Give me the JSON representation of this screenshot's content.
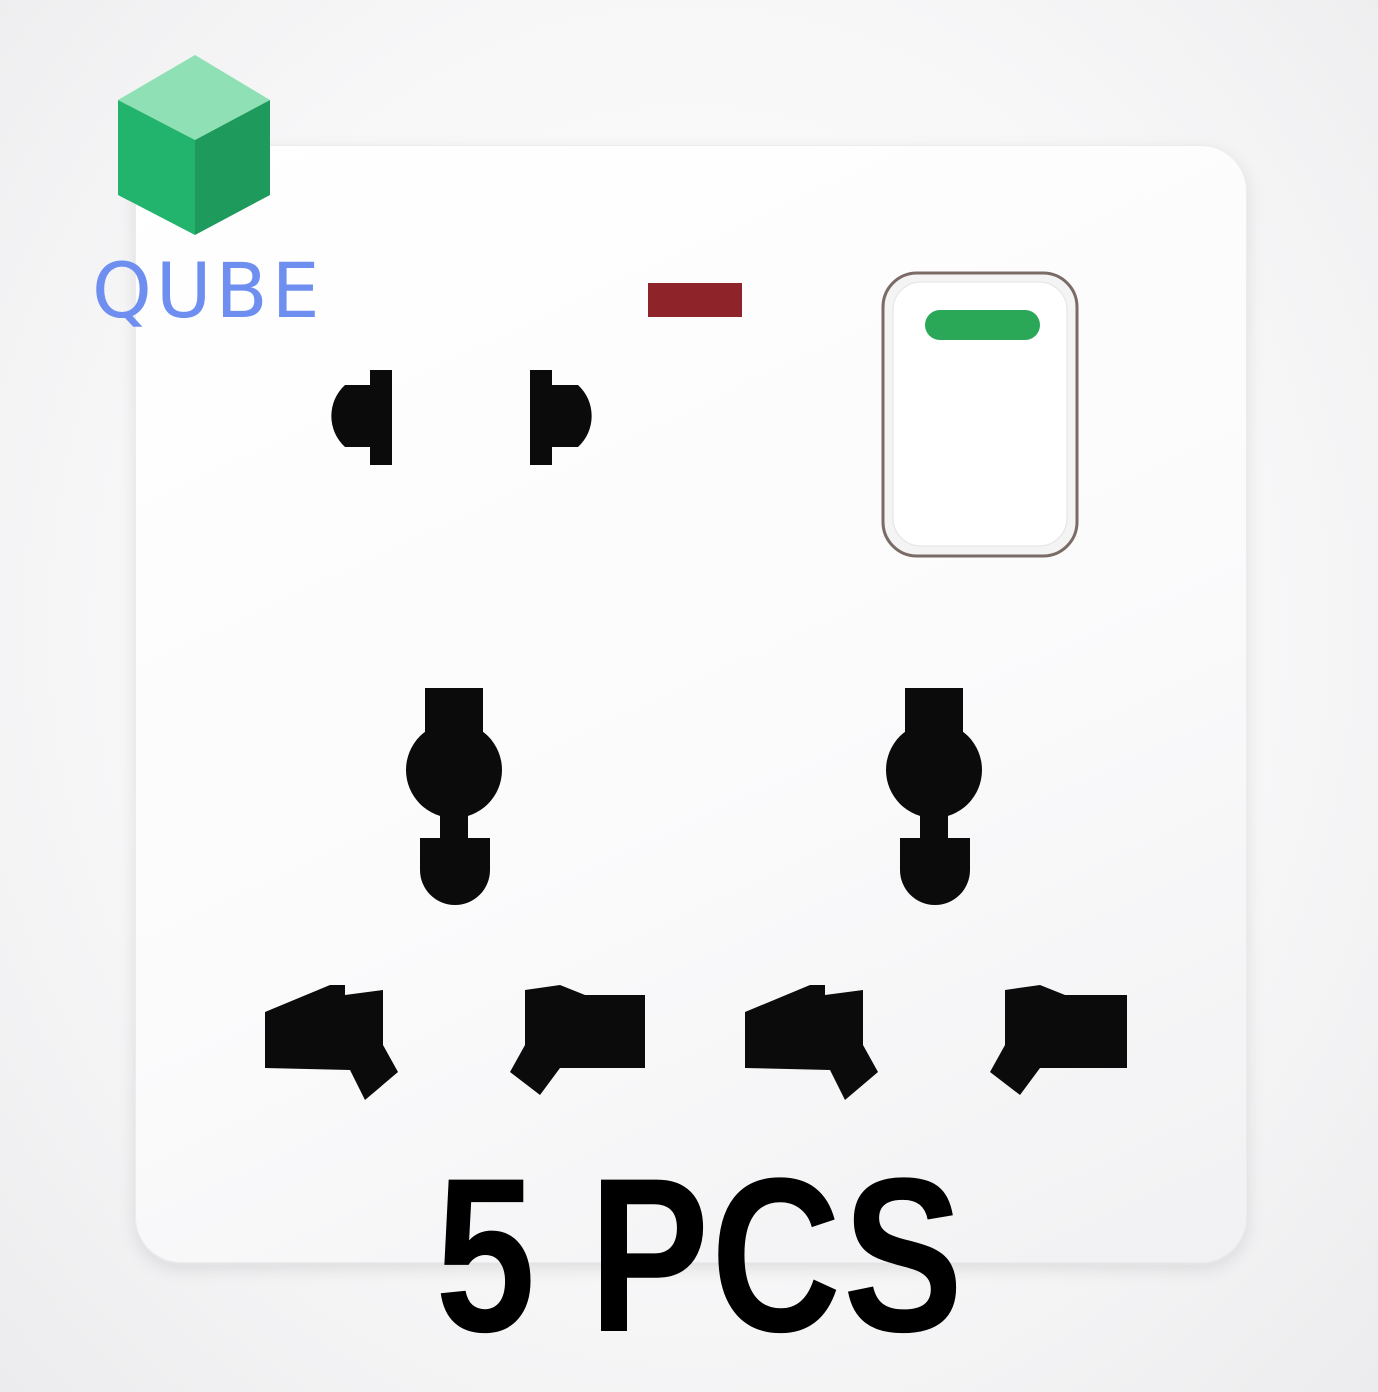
{
  "brand": {
    "name": "QUBE",
    "logo_icon": "green-cube-icon",
    "text_color": "#6e8ff0",
    "cube_front_color": "#22b36c",
    "cube_top_color": "#8fe0b4",
    "cube_side_color": "#1e9a5c"
  },
  "product": {
    "quantity_caption": "5 PCS",
    "plate_color": "#fdfdfd",
    "neon_indicator_color": "#8e2429",
    "switch_indicator_color": "#2aa857",
    "socket_hole_color": "#0b0b0b"
  }
}
